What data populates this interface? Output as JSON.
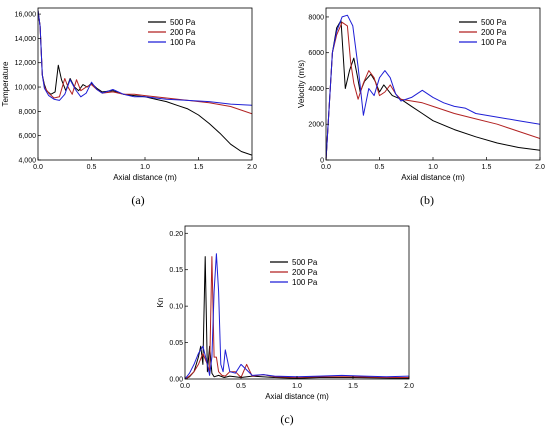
{
  "colors": {
    "p500": "#000000",
    "p200": "#b22222",
    "p100": "#1f1fd6"
  },
  "chart_data": [
    {
      "type": "line",
      "caption": "(a)",
      "xlabel": "Axial distance (m)",
      "ylabel": "Temperature",
      "xlim": [
        0,
        2.0
      ],
      "ylim": [
        4000,
        16500
      ],
      "xticks": [
        "0.0",
        "0.5",
        "1.0",
        "1.5",
        "2.0"
      ],
      "yticks": [
        "4,000",
        "6,000",
        "8,000",
        "10,000",
        "12,000",
        "14,000",
        "16,000"
      ],
      "legend_position": "top-right",
      "series": [
        {
          "name": "500 Pa",
          "color": "#000000",
          "x": [
            0,
            0.02,
            0.04,
            0.06,
            0.08,
            0.12,
            0.16,
            0.19,
            0.22,
            0.26,
            0.3,
            0.34,
            0.38,
            0.42,
            0.46,
            0.5,
            0.55,
            0.6,
            0.7,
            0.8,
            0.9,
            1.0,
            1.1,
            1.2,
            1.3,
            1.4,
            1.5,
            1.6,
            1.7,
            1.8,
            1.9,
            2.0
          ],
          "y": [
            16300,
            15000,
            11000,
            10200,
            9700,
            9400,
            9600,
            11800,
            10600,
            9700,
            10700,
            10000,
            9700,
            10200,
            10000,
            10300,
            9900,
            9600,
            9700,
            9400,
            9300,
            9200,
            9000,
            8800,
            8500,
            8200,
            7700,
            7000,
            6200,
            5300,
            4700,
            4400
          ]
        },
        {
          "name": "200 Pa",
          "color": "#b22222",
          "x": [
            0,
            0.02,
            0.04,
            0.06,
            0.1,
            0.15,
            0.2,
            0.25,
            0.28,
            0.32,
            0.36,
            0.4,
            0.45,
            0.5,
            0.55,
            0.6,
            0.7,
            0.8,
            0.9,
            1.0,
            1.2,
            1.4,
            1.6,
            1.8,
            1.9,
            2.0
          ],
          "y": [
            16300,
            15000,
            11000,
            10000,
            9500,
            9100,
            9200,
            10700,
            10000,
            9400,
            10600,
            9700,
            10000,
            10200,
            9800,
            9500,
            9600,
            9400,
            9400,
            9300,
            9100,
            8900,
            8700,
            8400,
            8100,
            7800
          ]
        },
        {
          "name": "100 Pa",
          "color": "#1f1fd6",
          "x": [
            0,
            0.02,
            0.04,
            0.06,
            0.1,
            0.15,
            0.2,
            0.25,
            0.3,
            0.35,
            0.4,
            0.45,
            0.5,
            0.55,
            0.6,
            0.7,
            0.8,
            0.9,
            1.0,
            1.2,
            1.4,
            1.6,
            1.8,
            2.0
          ],
          "y": [
            16300,
            15000,
            11000,
            9900,
            9300,
            9000,
            8900,
            9400,
            10600,
            9800,
            9200,
            9500,
            10400,
            9800,
            9500,
            9800,
            9400,
            9200,
            9200,
            9000,
            8900,
            8800,
            8600,
            8500
          ]
        }
      ]
    },
    {
      "type": "line",
      "caption": "(b)",
      "xlabel": "Axial distance (m)",
      "ylabel": "Velocity (m/s)",
      "xlim": [
        0,
        2.0
      ],
      "ylim": [
        0,
        8500
      ],
      "xticks": [
        "0.0",
        "0.5",
        "1.0",
        "1.5",
        "2.0"
      ],
      "yticks": [
        "0",
        "2000",
        "4000",
        "6000",
        "8000"
      ],
      "legend_position": "top-right",
      "series": [
        {
          "name": "500 Pa",
          "color": "#000000",
          "x": [
            0,
            0.03,
            0.06,
            0.1,
            0.14,
            0.18,
            0.22,
            0.26,
            0.29,
            0.32,
            0.36,
            0.42,
            0.46,
            0.5,
            0.54,
            0.58,
            0.62,
            0.7,
            0.8,
            0.9,
            1.0,
            1.2,
            1.4,
            1.6,
            1.8,
            2.0
          ],
          "y": [
            0,
            3000,
            6000,
            7400,
            7800,
            4000,
            5000,
            5700,
            4800,
            3800,
            4400,
            4800,
            4400,
            3800,
            4200,
            3900,
            3600,
            3400,
            3000,
            2600,
            2200,
            1700,
            1300,
            950,
            700,
            550
          ]
        },
        {
          "name": "200 Pa",
          "color": "#b22222",
          "x": [
            0,
            0.03,
            0.06,
            0.1,
            0.15,
            0.2,
            0.23,
            0.26,
            0.3,
            0.35,
            0.4,
            0.45,
            0.5,
            0.55,
            0.6,
            0.65,
            0.7,
            0.8,
            0.9,
            1.0,
            1.2,
            1.4,
            1.6,
            1.8,
            2.0
          ],
          "y": [
            0,
            3000,
            6000,
            7000,
            7700,
            7500,
            5500,
            4300,
            3400,
            4300,
            5000,
            4600,
            3600,
            3800,
            4200,
            3700,
            3400,
            3300,
            3200,
            3000,
            2600,
            2300,
            2000,
            1600,
            1200
          ]
        },
        {
          "name": "100 Pa",
          "color": "#1f1fd6",
          "x": [
            0,
            0.03,
            0.06,
            0.1,
            0.15,
            0.2,
            0.25,
            0.3,
            0.35,
            0.4,
            0.45,
            0.5,
            0.55,
            0.6,
            0.65,
            0.7,
            0.8,
            0.9,
            1.0,
            1.1,
            1.2,
            1.3,
            1.4,
            1.6,
            1.8,
            2.0
          ],
          "y": [
            0,
            3000,
            6000,
            7200,
            8000,
            8100,
            7500,
            5200,
            2500,
            4000,
            3600,
            4600,
            5000,
            4600,
            3700,
            3300,
            3500,
            3900,
            3500,
            3200,
            3000,
            2900,
            2600,
            2400,
            2200,
            2000
          ]
        }
      ]
    },
    {
      "type": "line",
      "caption": "(c)",
      "xlabel": "Axial distance (m)",
      "ylabel": "Kn",
      "xlim": [
        0,
        2.0
      ],
      "ylim": [
        0,
        0.21
      ],
      "xticks": [
        "0.0",
        "0.5",
        "1.0",
        "1.5",
        "2.0"
      ],
      "yticks": [
        "0.00",
        "0.05",
        "0.10",
        "0.15",
        "0.20"
      ],
      "legend_position": "top-right",
      "series": [
        {
          "name": "500 Pa",
          "color": "#000000",
          "x": [
            0,
            0.04,
            0.08,
            0.1,
            0.12,
            0.14,
            0.16,
            0.18,
            0.2,
            0.22,
            0.24,
            0.26,
            0.3,
            0.35,
            0.4,
            0.5,
            0.6,
            0.8,
            1.0,
            1.2,
            1.5,
            2.0
          ],
          "y": [
            0.0,
            0.003,
            0.01,
            0.02,
            0.03,
            0.045,
            0.02,
            0.168,
            0.01,
            0.045,
            0.008,
            0.003,
            0.005,
            0.002,
            0.004,
            0.002,
            0.004,
            0.002,
            0.001,
            0.002,
            0.002,
            0.001
          ]
        },
        {
          "name": "200 Pa",
          "color": "#b22222",
          "x": [
            0,
            0.04,
            0.08,
            0.12,
            0.16,
            0.2,
            0.22,
            0.24,
            0.26,
            0.28,
            0.3,
            0.33,
            0.36,
            0.4,
            0.45,
            0.5,
            0.55,
            0.6,
            0.7,
            0.8,
            1.0,
            1.2,
            1.5,
            1.8,
            2.0
          ],
          "y": [
            0.0,
            0.004,
            0.01,
            0.02,
            0.035,
            0.02,
            0.01,
            0.168,
            0.03,
            0.03,
            0.01,
            0.005,
            0.004,
            0.01,
            0.01,
            0.002,
            0.02,
            0.004,
            0.006,
            0.003,
            0.002,
            0.003,
            0.003,
            0.002,
            0.002
          ]
        },
        {
          "name": "100 Pa",
          "color": "#1f1fd6",
          "x": [
            0,
            0.04,
            0.08,
            0.12,
            0.16,
            0.2,
            0.22,
            0.24,
            0.26,
            0.28,
            0.3,
            0.32,
            0.34,
            0.36,
            0.4,
            0.45,
            0.5,
            0.6,
            0.7,
            0.8,
            1.0,
            1.2,
            1.4,
            1.6,
            1.8,
            2.0
          ],
          "y": [
            0.0,
            0.008,
            0.02,
            0.035,
            0.045,
            0.02,
            0.005,
            0.03,
            0.12,
            0.172,
            0.12,
            0.02,
            0.01,
            0.04,
            0.01,
            0.008,
            0.02,
            0.005,
            0.006,
            0.004,
            0.003,
            0.004,
            0.005,
            0.004,
            0.003,
            0.004
          ]
        }
      ]
    }
  ]
}
